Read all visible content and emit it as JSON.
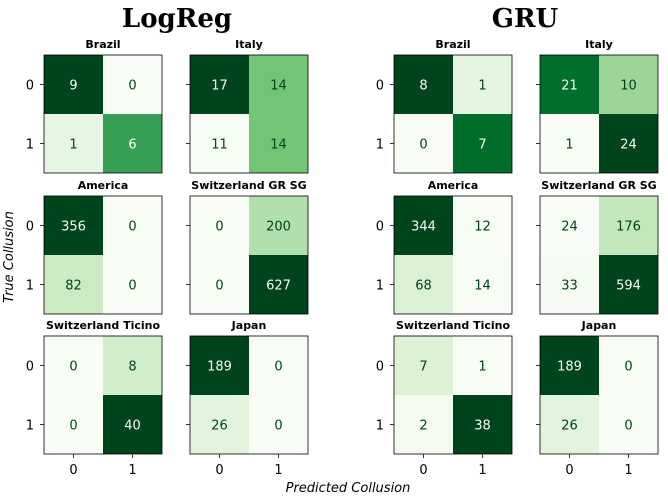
{
  "chart_data": {
    "type": "heatmap",
    "colormap": "Greens",
    "xlabel": "Predicted Collusion",
    "ylabel": "True Collusion",
    "tick_labels": [
      "0",
      "1"
    ],
    "groups": [
      {
        "title": "LogReg",
        "panels": [
          {
            "title": "Brazil",
            "matrix": [
              [
                9,
                0
              ],
              [
                1,
                6
              ]
            ]
          },
          {
            "title": "Italy",
            "matrix": [
              [
                17,
                14
              ],
              [
                11,
                14
              ]
            ]
          },
          {
            "title": "America",
            "matrix": [
              [
                356,
                0
              ],
              [
                82,
                0
              ]
            ]
          },
          {
            "title": "Switzerland  GR  SG",
            "matrix": [
              [
                0,
                200
              ],
              [
                0,
                627
              ]
            ]
          },
          {
            "title": "Switzerland  Ticino",
            "matrix": [
              [
                0,
                8
              ],
              [
                0,
                40
              ]
            ]
          },
          {
            "title": "Japan",
            "matrix": [
              [
                189,
                0
              ],
              [
                26,
                0
              ]
            ]
          }
        ]
      },
      {
        "title": "GRU",
        "panels": [
          {
            "title": "Brazil",
            "matrix": [
              [
                8,
                1
              ],
              [
                0,
                7
              ]
            ]
          },
          {
            "title": "Italy",
            "matrix": [
              [
                21,
                10
              ],
              [
                1,
                24
              ]
            ]
          },
          {
            "title": "America",
            "matrix": [
              [
                344,
                12
              ],
              [
                68,
                14
              ]
            ]
          },
          {
            "title": "Switzerland  GR  SG",
            "matrix": [
              [
                24,
                176
              ],
              [
                33,
                594
              ]
            ]
          },
          {
            "title": "Switzerland  Ticino",
            "matrix": [
              [
                7,
                1
              ],
              [
                2,
                38
              ]
            ]
          },
          {
            "title": "Japan",
            "matrix": [
              [
                189,
                0
              ],
              [
                26,
                0
              ]
            ]
          }
        ]
      }
    ]
  }
}
